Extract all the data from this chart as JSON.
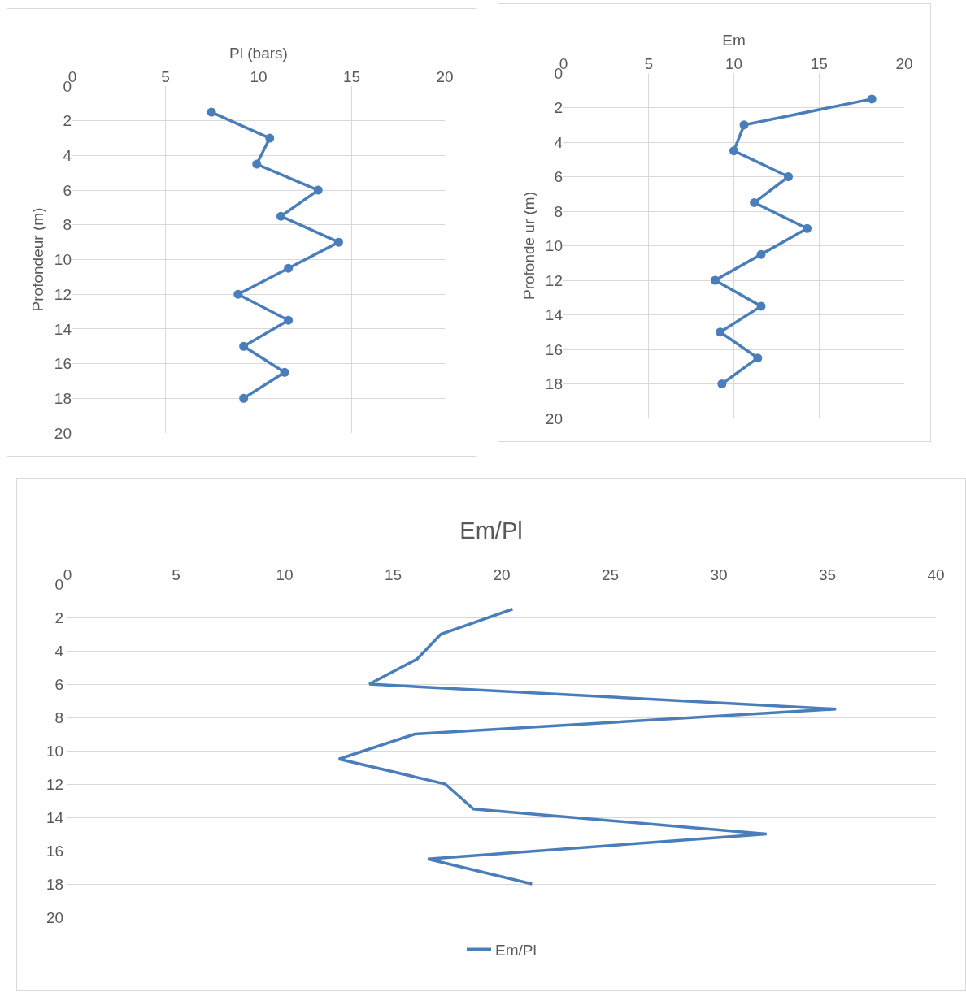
{
  "chart_data": [
    {
      "type": "line",
      "xlabel": "Pl (bars)",
      "ylabel": "Profondeur (m)",
      "marker": "circle",
      "grid": true,
      "legend": false,
      "xlim": [
        0,
        20
      ],
      "xticks": [
        0,
        5,
        10,
        15,
        20
      ],
      "ylim": [
        20,
        0
      ],
      "yticks": [
        0,
        2,
        4,
        6,
        8,
        10,
        12,
        14,
        16,
        18,
        20
      ],
      "series": [
        {
          "color": "#4a7ebb",
          "x": [
            7.47,
            10.6,
            9.9,
            13.2,
            11.2,
            14.3,
            11.6,
            8.9,
            11.6,
            9.2,
            11.4,
            9.2
          ],
          "values": [
            1.5,
            3,
            4.5,
            6,
            7.5,
            9,
            10.5,
            12,
            13.5,
            15,
            16.5,
            18
          ]
        }
      ]
    },
    {
      "type": "line",
      "xlabel": "Em",
      "ylabel": "Profonde ur (m)",
      "marker": "circle",
      "grid": true,
      "legend": false,
      "xlim": [
        0,
        20
      ],
      "xticks": [
        0,
        5,
        10,
        15,
        20
      ],
      "ylim": [
        20,
        0
      ],
      "yticks": [
        0,
        2,
        4,
        6,
        8,
        10,
        12,
        14,
        16,
        18,
        20
      ],
      "series": [
        {
          "color": "#4a7ebb",
          "x": [
            18.1,
            10.6,
            10.0,
            13.2,
            11.2,
            14.3,
            11.6,
            8.9,
            11.6,
            9.2,
            11.4,
            9.3
          ],
          "values": [
            1.5,
            3,
            4.5,
            6,
            7.5,
            9,
            10.5,
            12,
            13.5,
            15,
            16.5,
            18
          ]
        }
      ]
    },
    {
      "type": "line",
      "title": "Em/Pl",
      "marker": "none",
      "grid": "y",
      "legend": "bottom",
      "xlim": [
        0,
        40
      ],
      "xticks": [
        0,
        5,
        10,
        15,
        20,
        25,
        30,
        35,
        40
      ],
      "ylim": [
        20,
        0
      ],
      "yticks": [
        0,
        2,
        4,
        6,
        8,
        10,
        12,
        14,
        16,
        18,
        20
      ],
      "series": [
        {
          "name": "Em/Pl",
          "color": "#4a7ebb",
          "x": [
            20.5,
            17.2,
            16.1,
            13.9,
            35.4,
            16.0,
            12.5,
            17.4,
            18.7,
            32.2,
            16.6,
            21.4
          ],
          "values": [
            1.5,
            3,
            4.5,
            6,
            7.5,
            9,
            10.5,
            12,
            13.5,
            15,
            16.5,
            18
          ]
        }
      ]
    }
  ]
}
